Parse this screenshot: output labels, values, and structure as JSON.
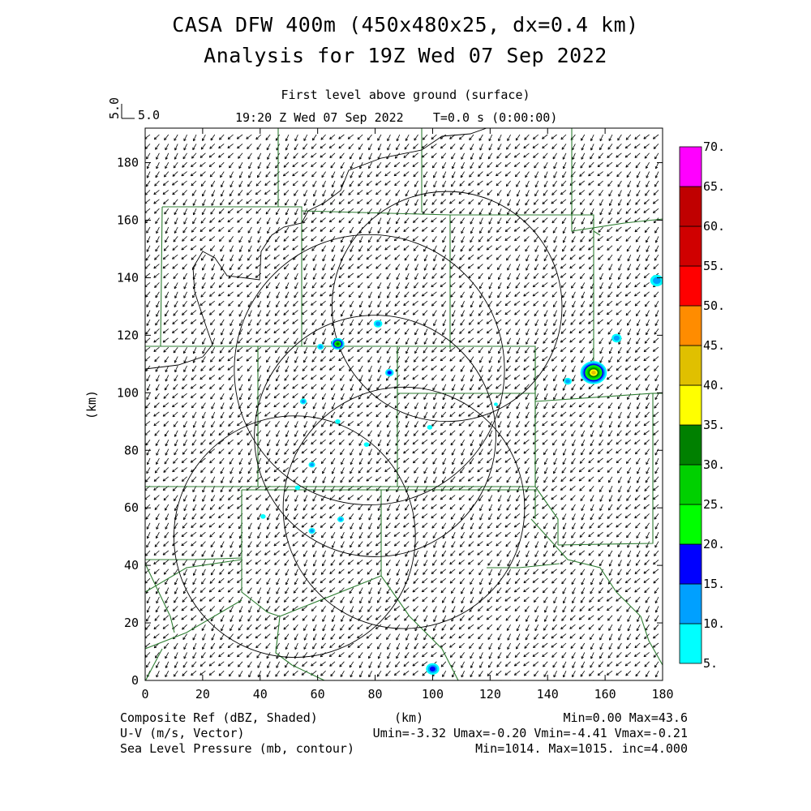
{
  "header": {
    "title1": "CASA DFW 400m (450x480x25, dx=0.4 km)",
    "title2": "Analysis for 19Z Wed 07 Sep 2022",
    "level": "First level above ground (surface)",
    "time": "19:20 Z Wed 07 Sep 2022    T=0.0 s (0:00:00)",
    "vec_ref_rot": "5.0",
    "vec_ref": "5.0"
  },
  "chart_data": {
    "type": "heatmap",
    "xlabel": "(km)",
    "ylabel": "(km)",
    "xlim": [
      0,
      180
    ],
    "ylim": [
      0,
      192
    ],
    "xticks": [
      "0",
      "20",
      "40",
      "60",
      "80",
      "100",
      "120",
      "140",
      "160",
      "180"
    ],
    "yticks": [
      "0",
      "20",
      "40",
      "60",
      "80",
      "100",
      "120",
      "140",
      "160",
      "180"
    ],
    "colorbar": {
      "levels": [
        "5.",
        "10.",
        "15.",
        "20.",
        "25.",
        "30.",
        "35.",
        "40.",
        "45.",
        "50.",
        "55.",
        "60.",
        "65.",
        "70."
      ],
      "colors": [
        "#00ffff",
        "#00a0ff",
        "#0000ff",
        "#00ff00",
        "#00d000",
        "#008000",
        "#ffff00",
        "#e0c000",
        "#ff8c00",
        "#ff0000",
        "#d00000",
        "#c00000",
        "#ff00ff"
      ]
    },
    "wind_u_range": [
      -3.32,
      -0.2
    ],
    "wind_v_range": [
      -4.41,
      -0.21
    ],
    "radar_rings": [
      {
        "cx": 78,
        "cy": 108,
        "r": 47
      },
      {
        "cx": 90,
        "cy": 60,
        "r": 42
      },
      {
        "cx": 52,
        "cy": 50,
        "r": 42
      },
      {
        "cx": 105,
        "cy": 130,
        "r": 40
      },
      {
        "cx": 80,
        "cy": 85,
        "r": 42
      }
    ],
    "echoes": [
      {
        "x": 67,
        "y": 117,
        "r": 2.0,
        "dbz": 30
      },
      {
        "x": 61,
        "y": 116,
        "r": 1.0,
        "dbz": 12
      },
      {
        "x": 81,
        "y": 124,
        "r": 1.3,
        "dbz": 10
      },
      {
        "x": 85,
        "y": 107,
        "r": 1.3,
        "dbz": 15
      },
      {
        "x": 55,
        "y": 97,
        "r": 1.0,
        "dbz": 10
      },
      {
        "x": 67,
        "y": 90,
        "r": 0.8,
        "dbz": 8
      },
      {
        "x": 99,
        "y": 88,
        "r": 0.8,
        "dbz": 8
      },
      {
        "x": 77,
        "y": 82,
        "r": 0.8,
        "dbz": 8
      },
      {
        "x": 58,
        "y": 75,
        "r": 1.0,
        "dbz": 10
      },
      {
        "x": 53,
        "y": 67,
        "r": 0.8,
        "dbz": 8
      },
      {
        "x": 68,
        "y": 56,
        "r": 1.0,
        "dbz": 10
      },
      {
        "x": 58,
        "y": 52,
        "r": 1.0,
        "dbz": 10
      },
      {
        "x": 41,
        "y": 57,
        "r": 0.8,
        "dbz": 8
      },
      {
        "x": 100,
        "y": 4,
        "r": 2.0,
        "dbz": 18
      },
      {
        "x": 156,
        "y": 107,
        "r": 4.0,
        "dbz": 43.6
      },
      {
        "x": 147,
        "y": 104,
        "r": 1.2,
        "dbz": 12
      },
      {
        "x": 164,
        "y": 119,
        "r": 1.5,
        "dbz": 10
      },
      {
        "x": 178,
        "y": 139,
        "r": 2.0,
        "dbz": 12
      },
      {
        "x": 122,
        "y": 96,
        "r": 0.6,
        "dbz": 6
      }
    ],
    "footer": {
      "field1": "Composite Ref (dBZ, Shaded)",
      "field1_stats": "Min=0.00 Max=43.6",
      "field2": "U-V (m/s, Vector)",
      "field2_stats": "Umin=-3.32 Umax=-0.20 Vmin=-4.41 Vmax=-0.21",
      "field3": "Sea Level Pressure (mb, contour)",
      "field3_stats": "Min=1014. Max=1015. inc=4.000",
      "xunits": "(km)"
    }
  },
  "colors": {
    "county_lines": "#2e7d32",
    "contour": "#000000",
    "frame": "#000000"
  }
}
